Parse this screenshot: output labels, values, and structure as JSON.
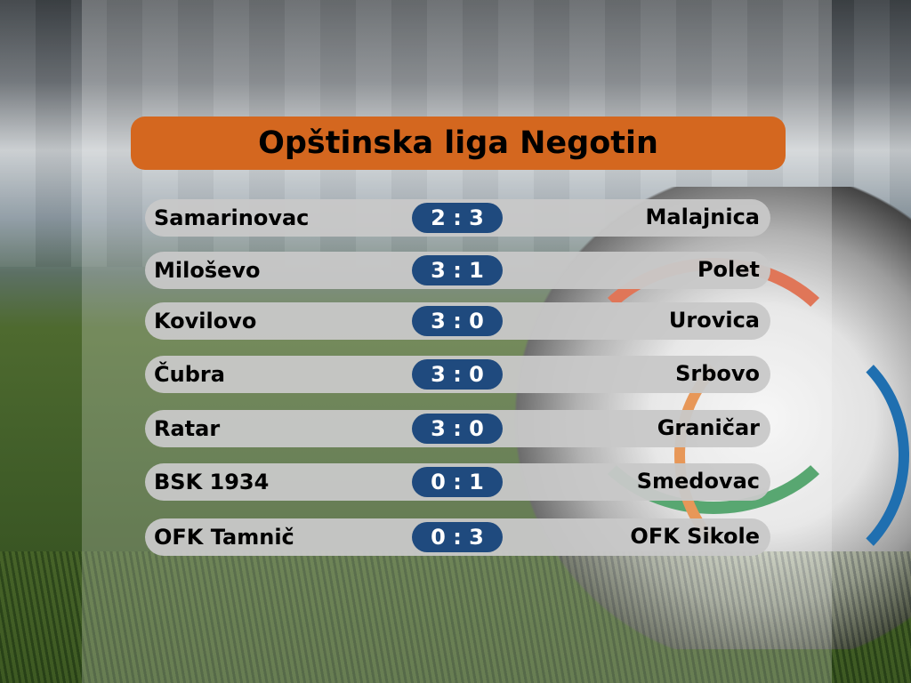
{
  "title": "Opštinska liga Negotin",
  "colors": {
    "title_bg": "#d4671f",
    "score_bg": "#1f4a7e",
    "row_bg": "#c8c8c8"
  },
  "matches": [
    {
      "home": "Samarinovac",
      "score": "2 : 3",
      "away": "Malajnica"
    },
    {
      "home": "Miloševo",
      "score": "3 : 1",
      "away": "Polet"
    },
    {
      "home": "Kovilovo",
      "score": "3 : 0",
      "away": "Urovica"
    },
    {
      "home": "Čubra",
      "score": "3 : 0",
      "away": "Srbovo"
    },
    {
      "home": "Ratar",
      "score": "3 : 0",
      "away": "Graničar"
    },
    {
      "home": "BSK 1934",
      "score": "0 : 1",
      "away": "Smedovac"
    },
    {
      "home": "OFK Tamnič",
      "score": "0 : 3",
      "away": "OFK Sikole"
    }
  ]
}
